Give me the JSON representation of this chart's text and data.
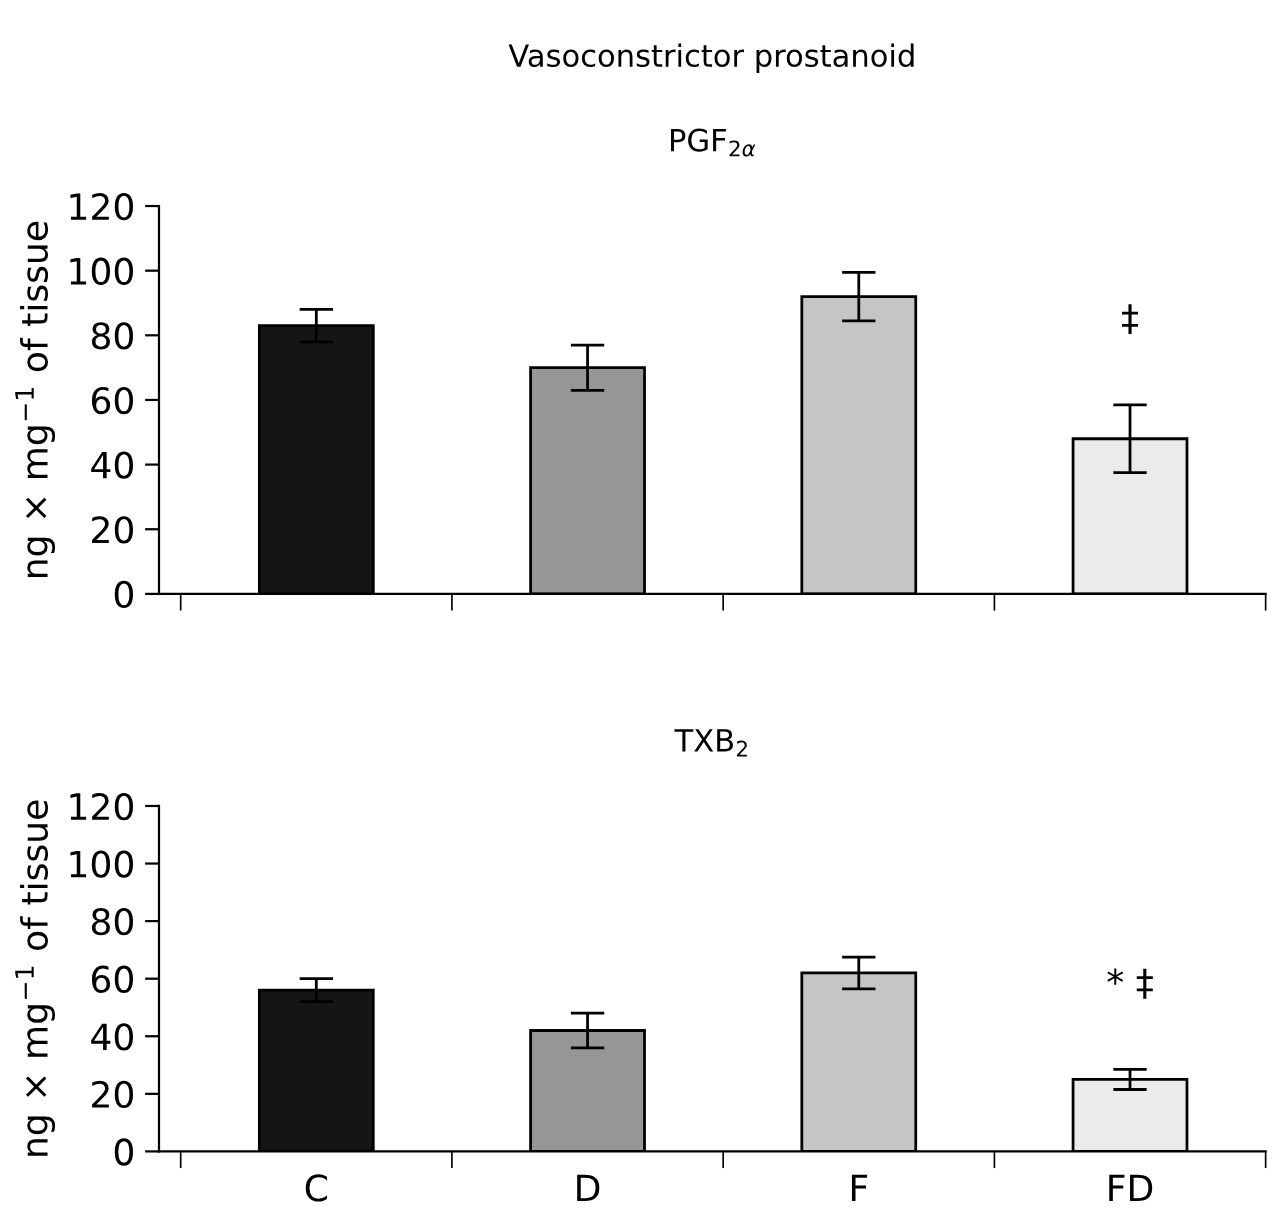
{
  "chart_data": [
    {
      "type": "bar",
      "title": "Vasoconstrictor prostanoid",
      "subtitle": "PGF$_{2α}$",
      "ylabel": "ng × mg$^{−1}$ of tissue",
      "categories": [
        null,
        null,
        null,
        null
      ],
      "values": [
        83,
        70,
        92,
        48
      ],
      "errors": [
        5,
        7,
        7.5,
        10.5
      ],
      "colors": [
        "#151515",
        "#969696",
        "#c4c5c4",
        "#ebebeb"
      ],
      "ylim": [
        0,
        120
      ],
      "yticks": [
        0,
        20,
        40,
        60,
        80,
        100,
        120
      ],
      "grid": false,
      "legend": false,
      "annotations": [
        "‡"
      ]
    },
    {
      "type": "bar",
      "title": "TXB$_{2}$",
      "ylabel": "ng × mg$^{−1}$ of tissue",
      "categories": [
        "C",
        "D",
        "F",
        "FD"
      ],
      "values": [
        56,
        42,
        62,
        25
      ],
      "errors": [
        4,
        6,
        5.5,
        3.5
      ],
      "colors": [
        "#151515",
        "#969696",
        "#c4c5c4",
        "#ebebeb"
      ],
      "ylim": [
        0,
        120
      ],
      "yticks": [
        0,
        20,
        40,
        60,
        80,
        100,
        120
      ],
      "grid": false,
      "legend": false,
      "annotations": [
        "* ‡"
      ]
    }
  ]
}
